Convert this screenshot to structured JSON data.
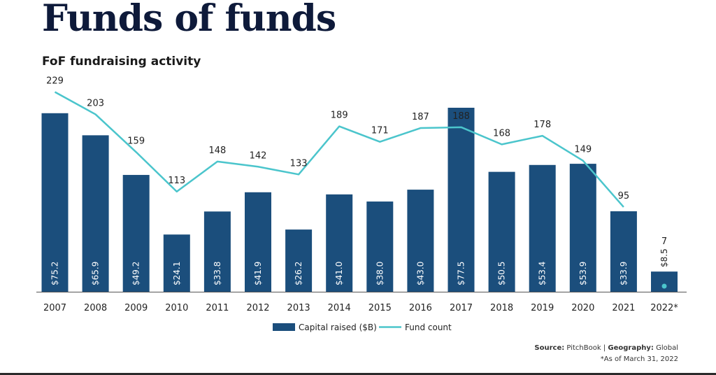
{
  "title": "Funds of funds",
  "subtitle": "FoF fundraising activity",
  "footer": {
    "source_label": "Source:",
    "source_value": "PitchBook",
    "separator": "|",
    "geography_label": "Geography:",
    "geography_value": "Global",
    "note": "*As of March 31, 2022"
  },
  "colors": {
    "bar": "#1b4e7c",
    "line": "#4bc5cc",
    "text": "#222222"
  },
  "chart_data": {
    "type": "bar",
    "title": "FoF fundraising activity",
    "categories": [
      "2007",
      "2008",
      "2009",
      "2010",
      "2011",
      "2012",
      "2013",
      "2014",
      "2015",
      "2016",
      "2017",
      "2018",
      "2019",
      "2020",
      "2021",
      "2022*"
    ],
    "series": [
      {
        "name": "Capital raised ($B)",
        "type": "bar",
        "values": [
          75.2,
          65.9,
          49.2,
          24.1,
          33.8,
          41.9,
          26.2,
          41.0,
          38.0,
          43.0,
          77.5,
          50.5,
          53.4,
          53.9,
          33.9,
          8.5
        ],
        "labels": [
          "$75.2",
          "$65.9",
          "$49.2",
          "$24.1",
          "$33.8",
          "$41.9",
          "$26.2",
          "$41.0",
          "$38.0",
          "$43.0",
          "$77.5",
          "$50.5",
          "$53.4",
          "$53.9",
          "$33.9",
          "$8.5"
        ]
      },
      {
        "name": "Fund count",
        "type": "line",
        "values": [
          229,
          203,
          159,
          113,
          148,
          142,
          133,
          189,
          171,
          187,
          188,
          168,
          178,
          149,
          95,
          7
        ]
      }
    ],
    "legend": [
      "Capital raised ($B)",
      "Fund count"
    ],
    "legend_position": "bottom-center",
    "grid": false,
    "ylim_bar": [
      0,
      80
    ],
    "ylim_line": [
      0,
      240
    ]
  }
}
